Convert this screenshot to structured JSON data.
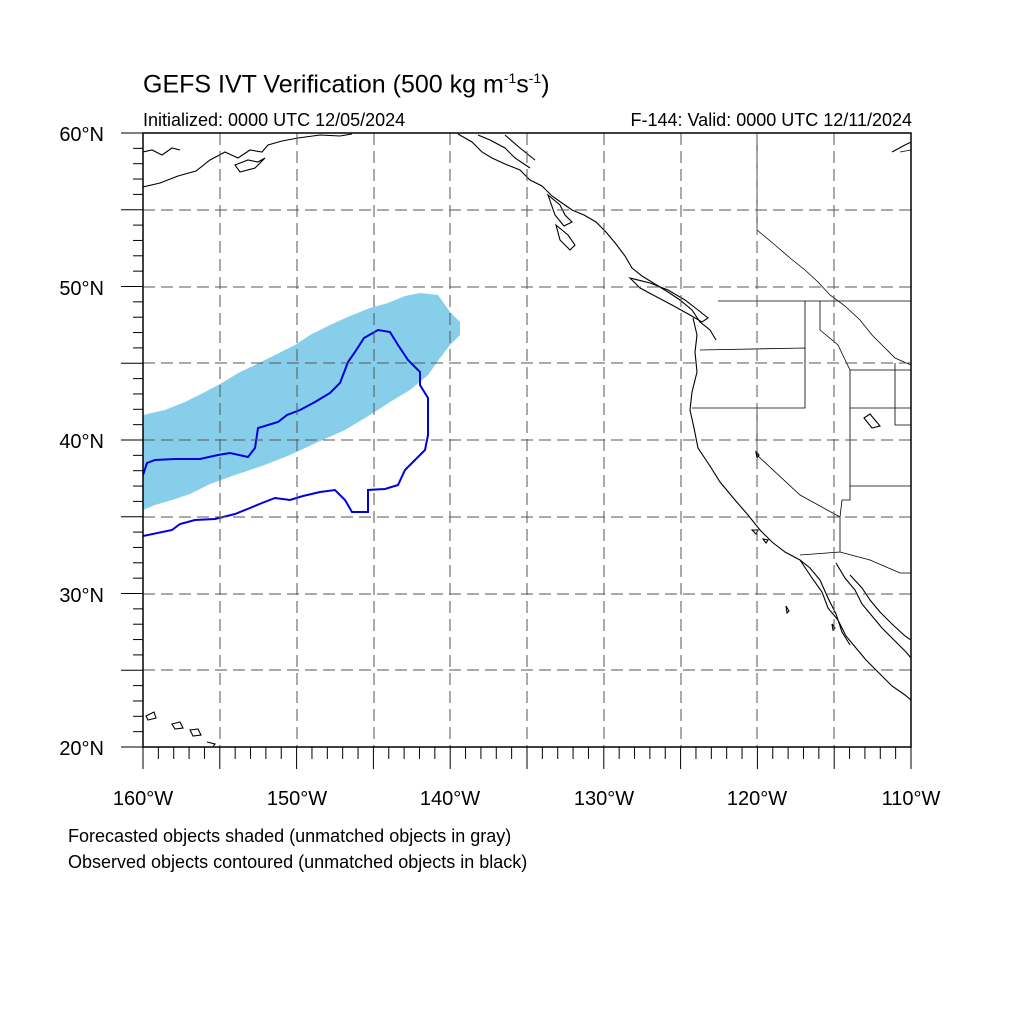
{
  "title": {
    "main": "GEFS IVT Verification (500 kg m",
    "exp1": "-1",
    "mid": "s",
    "exp2": "-1",
    "end": ")"
  },
  "subtitle_left": "Initialized: 0000 UTC 12/05/2024",
  "subtitle_right": "F-144: Valid: 0000 UTC 12/11/2024",
  "notes": [
    "Forecasted objects shaded (unmatched objects in gray)",
    "Observed objects contoured (unmatched objects in black)"
  ],
  "map": {
    "lon_range": [
      -160,
      -110
    ],
    "lat_range": [
      20,
      60
    ],
    "lat_labels": [
      "20°N",
      "30°N",
      "40°N",
      "50°N",
      "60°N"
    ],
    "lon_labels": [
      "160°W",
      "150°W",
      "140°W",
      "130°W",
      "120°W",
      "110°W"
    ],
    "grid": "dashed every 5 degrees",
    "colors": {
      "forecast_fill": "#87ceeb",
      "observed_contour": "#0000dd",
      "coastline": "#000000",
      "grid": "#555555"
    }
  }
}
